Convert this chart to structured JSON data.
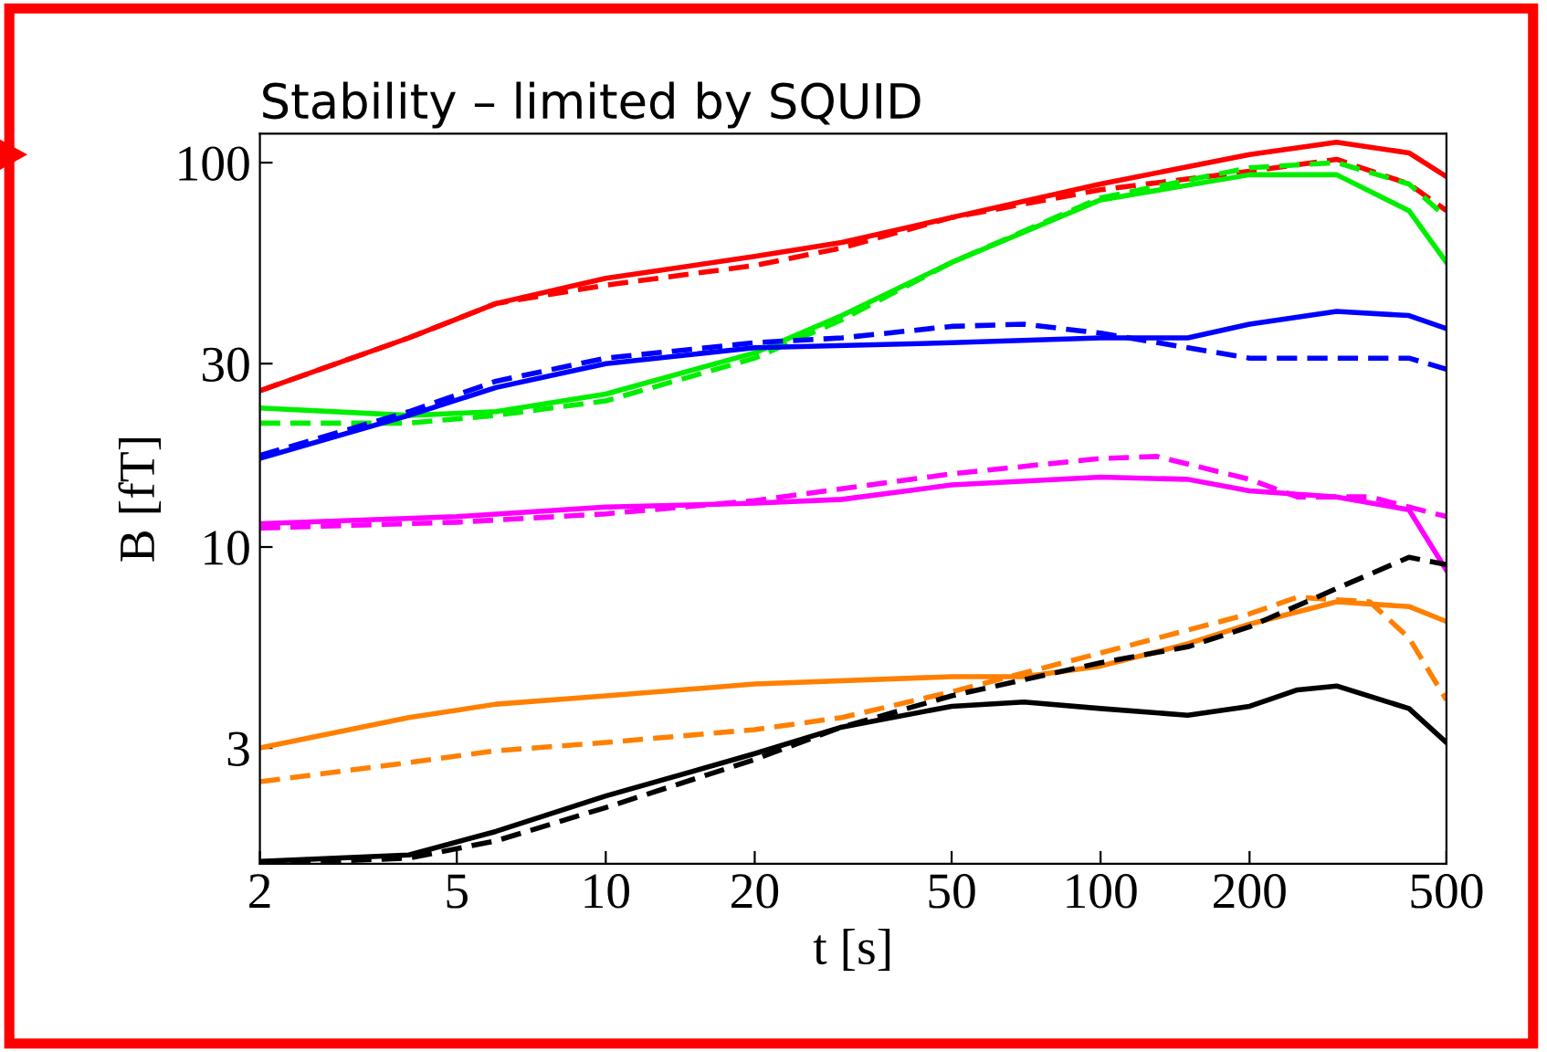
{
  "chart_data": {
    "type": "line",
    "title": "Stability – limited by SQUID",
    "xlabel": "t [s]",
    "ylabel": "B [fT]",
    "log": "xy",
    "xlim": [
      2,
      500
    ],
    "ylim": [
      1.5,
      119
    ],
    "xticks": [
      2,
      5,
      10,
      20,
      50,
      100,
      200,
      500
    ],
    "yticks": [
      3,
      10,
      30,
      100
    ],
    "grid": false,
    "legend": false,
    "marker": "none",
    "series": [
      {
        "color": "#ff0000",
        "line_style": "solid",
        "x": [
          2,
          4,
          6,
          10,
          20,
          30,
          50,
          100,
          200,
          300,
          420,
          500
        ],
        "values": [
          25.5,
          35,
          43,
          50,
          57,
          62,
          72,
          88,
          105,
          113,
          106,
          92
        ]
      },
      {
        "color": "#ff0000",
        "line_style": "dashed",
        "x": [
          2,
          4,
          6,
          10,
          20,
          30,
          50,
          100,
          200,
          300,
          420,
          500
        ],
        "values": [
          25.5,
          35,
          43,
          48,
          54,
          60,
          72,
          85,
          95,
          102,
          88,
          75
        ]
      },
      {
        "color": "#00ee00",
        "line_style": "solid",
        "x": [
          2,
          4,
          6,
          10,
          20,
          30,
          50,
          100,
          200,
          300,
          420,
          500
        ],
        "values": [
          23,
          22,
          22.5,
          25,
          32,
          40,
          55,
          80,
          93,
          93,
          75,
          55
        ]
      },
      {
        "color": "#00ee00",
        "line_style": "dashed",
        "x": [
          2,
          4,
          6,
          10,
          20,
          30,
          50,
          100,
          200,
          300,
          420,
          500
        ],
        "values": [
          21,
          21,
          22,
          24,
          31,
          39,
          55,
          81,
          97,
          100,
          88,
          72
        ]
      },
      {
        "color": "#0000ff",
        "line_style": "solid",
        "x": [
          2,
          4,
          6,
          10,
          20,
          50,
          100,
          150,
          200,
          300,
          420,
          500
        ],
        "values": [
          17,
          22,
          26,
          30,
          33,
          34,
          35,
          35,
          38,
          41,
          40,
          37
        ]
      },
      {
        "color": "#0000ff",
        "line_style": "dashed",
        "x": [
          2,
          4,
          6,
          10,
          20,
          30,
          50,
          70,
          100,
          150,
          200,
          300,
          420,
          500
        ],
        "values": [
          17.3,
          22.5,
          27,
          31,
          34,
          35,
          37.5,
          38,
          36,
          33,
          31,
          31,
          31,
          29
        ]
      },
      {
        "color": "#ff00ff",
        "line_style": "solid",
        "x": [
          2,
          5,
          10,
          20,
          30,
          50,
          100,
          150,
          200,
          300,
          420,
          500
        ],
        "values": [
          11.5,
          12,
          12.7,
          13,
          13.3,
          14.5,
          15.2,
          15,
          14,
          13.5,
          12.5,
          8.7
        ]
      },
      {
        "color": "#ff00ff",
        "line_style": "dashed",
        "x": [
          2,
          5,
          10,
          20,
          50,
          100,
          130,
          200,
          250,
          350,
          500
        ],
        "values": [
          11.2,
          11.6,
          12.2,
          13.2,
          15.5,
          17,
          17.2,
          15,
          13.5,
          13.5,
          12
        ]
      },
      {
        "color": "#ff8000",
        "line_style": "solid",
        "x": [
          2,
          4,
          6,
          10,
          20,
          50,
          70,
          100,
          150,
          200,
          300,
          420,
          500
        ],
        "values": [
          3.0,
          3.6,
          3.9,
          4.1,
          4.4,
          4.6,
          4.6,
          4.9,
          5.6,
          6.3,
          7.2,
          7.0,
          6.4
        ]
      },
      {
        "color": "#ff8000",
        "line_style": "dashed",
        "x": [
          2,
          4,
          6,
          10,
          20,
          30,
          50,
          100,
          200,
          250,
          350,
          420,
          500
        ],
        "values": [
          2.45,
          2.75,
          2.95,
          3.1,
          3.35,
          3.6,
          4.2,
          5.3,
          6.7,
          7.4,
          7.2,
          5.8,
          4.0
        ]
      },
      {
        "color": "#000000",
        "line_style": "solid",
        "x": [
          2,
          4,
          6,
          10,
          20,
          30,
          50,
          70,
          100,
          150,
          200,
          250,
          300,
          420,
          500
        ],
        "values": [
          1.52,
          1.58,
          1.82,
          2.25,
          2.9,
          3.4,
          3.85,
          3.95,
          3.8,
          3.65,
          3.85,
          4.25,
          4.35,
          3.8,
          3.1
        ]
      },
      {
        "color": "#000000",
        "line_style": "dashed",
        "x": [
          2,
          4,
          6,
          10,
          20,
          30,
          50,
          100,
          150,
          200,
          300,
          420,
          500
        ],
        "values": [
          1.5,
          1.55,
          1.72,
          2.1,
          2.8,
          3.4,
          4.1,
          5.0,
          5.5,
          6.2,
          7.8,
          9.4,
          9.0
        ]
      }
    ]
  }
}
